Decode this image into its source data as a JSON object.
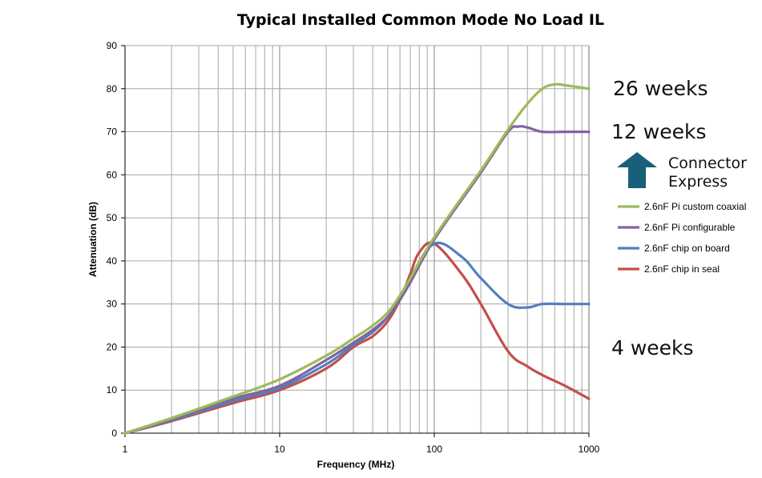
{
  "chart_data": {
    "type": "line",
    "title": "Typical Installed Common Mode No Load IL",
    "xlabel": "Frequency (MHz)",
    "ylabel": "Attenuation (dB)",
    "xscale": "log",
    "xlim": [
      1,
      1000
    ],
    "ylim": [
      0,
      90
    ],
    "grid": true,
    "x_ticks": [
      "1",
      "10",
      "100",
      "1000"
    ],
    "y_ticks": [
      "0",
      "10",
      "20",
      "30",
      "40",
      "50",
      "60",
      "70",
      "80",
      "90"
    ],
    "legend_position": "right",
    "series": [
      {
        "name": "2.6nF Pi custom coaxial",
        "color": "#9bbb59",
        "x": [
          1,
          2,
          5,
          10,
          20,
          30,
          40,
          50,
          60,
          70,
          100,
          200,
          300,
          400,
          500,
          600,
          700,
          1000
        ],
        "y": [
          0,
          3.5,
          8.5,
          12.5,
          18,
          22,
          25,
          28,
          32,
          36,
          45.5,
          61,
          70.5,
          76.5,
          80,
          81,
          80.8,
          80
        ]
      },
      {
        "name": "2.6nF Pi configurable",
        "color": "#8064a2",
        "x": [
          1,
          2,
          5,
          10,
          20,
          30,
          40,
          50,
          60,
          70,
          100,
          200,
          300,
          350,
          400,
          500,
          700,
          1000
        ],
        "y": [
          0,
          3.2,
          8,
          11,
          17,
          21,
          24,
          27,
          31,
          35,
          45,
          60.5,
          70,
          71.2,
          71,
          70,
          70,
          70
        ]
      },
      {
        "name": "2.6nF chip on board",
        "color": "#4f81bd",
        "x": [
          1,
          2,
          5,
          10,
          20,
          30,
          40,
          50,
          60,
          70,
          100,
          150,
          200,
          300,
          400,
          500,
          700,
          1000
        ],
        "y": [
          0,
          3,
          7.5,
          10.5,
          16,
          20.5,
          23.5,
          27,
          31,
          36,
          44,
          41,
          36,
          30,
          29.2,
          30,
          30,
          30
        ]
      },
      {
        "name": "2.6nF chip in seal",
        "color": "#c0504d",
        "x": [
          1,
          2,
          5,
          10,
          20,
          30,
          40,
          50,
          60,
          70,
          80,
          100,
          150,
          200,
          300,
          400,
          500,
          700,
          1000
        ],
        "y": [
          0,
          2.8,
          7,
          10,
          15,
          20,
          22.5,
          26,
          31,
          37,
          42,
          44,
          37,
          30,
          19,
          15.5,
          13.5,
          11,
          8
        ]
      }
    ],
    "annotations": [
      {
        "text": "26 weeks"
      },
      {
        "text": "12 weeks"
      },
      {
        "text": "Connector"
      },
      {
        "text": "Express"
      },
      {
        "text": "4 weeks"
      }
    ],
    "arrow_color": "#1a5f7a"
  }
}
